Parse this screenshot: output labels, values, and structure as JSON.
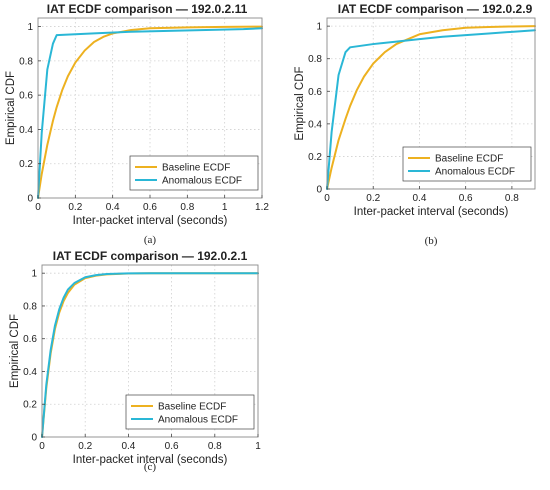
{
  "chart_data": [
    {
      "type": "line",
      "panel": "a",
      "caption": "(a)",
      "title": "IAT ECDF comparison — 192.0.2.11",
      "xlabel": "Inter-packet interval (seconds)",
      "ylabel": "Empirical CDF",
      "xlim": [
        0,
        1.2
      ],
      "ylim": [
        0,
        1.05
      ],
      "xticks": [
        0,
        0.2,
        0.4,
        0.6,
        0.8,
        1,
        1.2
      ],
      "xtick_labels": [
        "0",
        "0.2",
        "0.4",
        "0.6",
        "0.8",
        "1",
        "1.2"
      ],
      "yticks": [
        0,
        0.2,
        0.4,
        0.6,
        0.8,
        1
      ],
      "ytick_labels": [
        "0",
        "0.2",
        "0.4",
        "0.6",
        "0.8",
        "1"
      ],
      "grid": true,
      "legend_position": "bottom-right",
      "series": [
        {
          "name": "Baseline ECDF",
          "color": "#EDB120",
          "x": [
            0,
            0.02,
            0.05,
            0.08,
            0.1,
            0.13,
            0.16,
            0.2,
            0.25,
            0.3,
            0.35,
            0.4,
            0.5,
            0.6,
            0.8,
            1.0,
            1.2
          ],
          "y": [
            0,
            0.14,
            0.31,
            0.45,
            0.53,
            0.63,
            0.71,
            0.79,
            0.86,
            0.91,
            0.94,
            0.96,
            0.98,
            0.99,
            0.995,
            0.998,
            1.0
          ]
        },
        {
          "name": "Anomalous ECDF",
          "color": "#2AB7D6",
          "x": [
            0,
            0.02,
            0.05,
            0.08,
            0.1,
            0.3,
            0.5,
            0.7,
            0.9,
            1.1,
            1.2
          ],
          "y": [
            0,
            0.38,
            0.75,
            0.9,
            0.95,
            0.96,
            0.97,
            0.975,
            0.98,
            0.985,
            0.99
          ]
        }
      ]
    },
    {
      "type": "line",
      "panel": "b",
      "caption": "(b)",
      "title": "IAT ECDF comparison — 192.0.2.9",
      "xlabel": "Inter-packet interval (seconds)",
      "ylabel": "Empirical CDF",
      "xlim": [
        0,
        0.9
      ],
      "ylim": [
        0,
        1.05
      ],
      "xticks": [
        0,
        0.2,
        0.4,
        0.6,
        0.8
      ],
      "xtick_labels": [
        "0",
        "0.2",
        "0.4",
        "0.6",
        "0.8"
      ],
      "yticks": [
        0,
        0.2,
        0.4,
        0.6,
        0.8,
        1
      ],
      "ytick_labels": [
        "0",
        "0.2",
        "0.4",
        "0.6",
        "0.8",
        "1"
      ],
      "grid": true,
      "legend_position": "bottom-right",
      "series": [
        {
          "name": "Baseline ECDF",
          "color": "#EDB120",
          "x": [
            0,
            0.02,
            0.05,
            0.08,
            0.1,
            0.13,
            0.16,
            0.2,
            0.25,
            0.3,
            0.4,
            0.5,
            0.6,
            0.7,
            0.8,
            0.9
          ],
          "y": [
            0,
            0.13,
            0.3,
            0.43,
            0.51,
            0.61,
            0.69,
            0.77,
            0.84,
            0.89,
            0.95,
            0.975,
            0.99,
            0.995,
            0.998,
            1.0
          ]
        },
        {
          "name": "Anomalous ECDF",
          "color": "#2AB7D6",
          "x": [
            0,
            0.02,
            0.05,
            0.08,
            0.1,
            0.2,
            0.3,
            0.4,
            0.5,
            0.6,
            0.7,
            0.8,
            0.9
          ],
          "y": [
            0,
            0.35,
            0.7,
            0.84,
            0.87,
            0.89,
            0.905,
            0.92,
            0.935,
            0.945,
            0.955,
            0.965,
            0.975
          ]
        }
      ]
    },
    {
      "type": "line",
      "panel": "c",
      "caption": "(c)",
      "title": "IAT ECDF comparison — 192.0.2.1",
      "xlabel": "Inter-packet interval (seconds)",
      "ylabel": "Empirical CDF",
      "xlim": [
        0,
        1
      ],
      "ylim": [
        0,
        1.05
      ],
      "xticks": [
        0,
        0.2,
        0.4,
        0.6,
        0.8,
        1
      ],
      "xtick_labels": [
        "0",
        "0.2",
        "0.4",
        "0.6",
        "0.8",
        "1"
      ],
      "yticks": [
        0,
        0.2,
        0.4,
        0.6,
        0.8,
        1
      ],
      "ytick_labels": [
        "0",
        "0.2",
        "0.4",
        "0.6",
        "0.8",
        "1"
      ],
      "grid": true,
      "legend_position": "bottom-right",
      "series": [
        {
          "name": "Baseline ECDF",
          "color": "#EDB120",
          "x": [
            0,
            0.02,
            0.04,
            0.06,
            0.08,
            0.1,
            0.12,
            0.15,
            0.2,
            0.25,
            0.3,
            0.4,
            0.5,
            0.6,
            0.8,
            1.0
          ],
          "y": [
            0,
            0.3,
            0.51,
            0.66,
            0.76,
            0.83,
            0.88,
            0.93,
            0.97,
            0.985,
            0.993,
            0.998,
            1.0,
            1.0,
            1.0,
            1.0
          ]
        },
        {
          "name": "Anomalous ECDF",
          "color": "#2AB7D6",
          "x": [
            0,
            0.02,
            0.04,
            0.06,
            0.08,
            0.1,
            0.12,
            0.15,
            0.2,
            0.25,
            0.3,
            0.4,
            0.5,
            0.6,
            0.8,
            1.0
          ],
          "y": [
            0,
            0.32,
            0.53,
            0.68,
            0.78,
            0.85,
            0.9,
            0.94,
            0.975,
            0.988,
            0.995,
            0.999,
            1.0,
            1.0,
            1.0,
            1.0
          ]
        }
      ]
    }
  ]
}
